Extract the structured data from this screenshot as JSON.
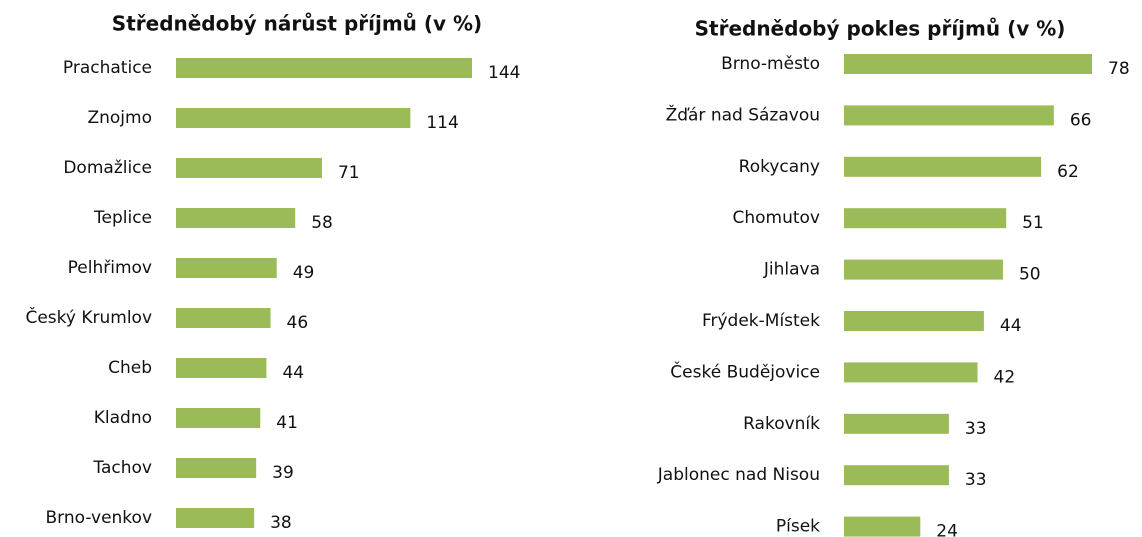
{
  "chart_data": [
    {
      "type": "bar",
      "orientation": "horizontal",
      "title": "Střednědobý nárůst příjmů (v %)",
      "color": "#9bbb59",
      "categories": [
        "Prachatice",
        "Znojmo",
        "Domažlice",
        "Teplice",
        "Pelhřimov",
        "Český Krumlov",
        "Cheb",
        "Kladno",
        "Tachov",
        "Brno-venkov"
      ],
      "values": [
        144,
        114,
        71,
        58,
        49,
        46,
        44,
        41,
        39,
        38
      ]
    },
    {
      "type": "bar",
      "orientation": "horizontal",
      "title": "Střednědobý pokles příjmů (v %)",
      "color": "#9bbb59",
      "categories": [
        "Brno-město",
        "Žďár nad Sázavou",
        "Rokycany",
        "Chomutov",
        "Jihlava",
        "Frýdek-Místek",
        "České Budějovice",
        "Rakovník",
        "Jablonec nad Nisou",
        "Písek"
      ],
      "values": [
        78,
        66,
        62,
        51,
        50,
        44,
        42,
        33,
        33,
        24
      ]
    }
  ]
}
